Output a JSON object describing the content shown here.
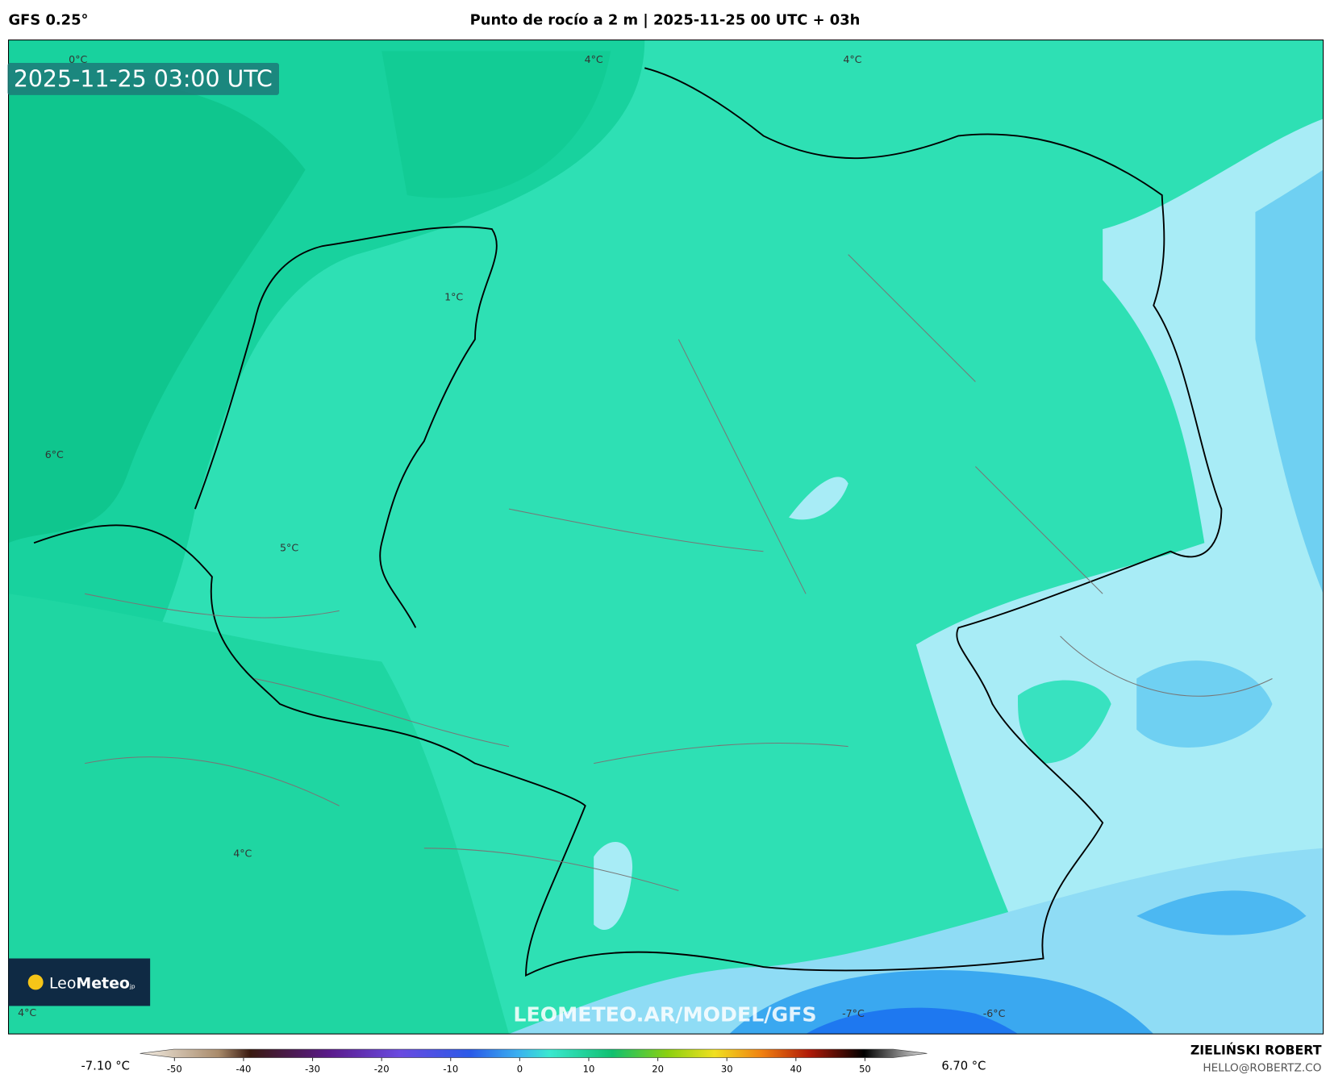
{
  "header": {
    "model": "GFS 0.25°",
    "title": "Punto de rocío a 2 m | 2025-11-25 00 UTC + 03h"
  },
  "map": {
    "timestamp": "2025-11-25 03:00 UTC",
    "contour_labels": [
      "0°C",
      "4°C",
      "4°C",
      "1°C",
      "6°C",
      "5°C",
      "4°C",
      "4°C",
      "-7°C",
      "-6°C"
    ],
    "watermark": "LEOMETEO.AR/MODEL/GFS",
    "logo": {
      "light": "Leo",
      "bold": "Meteo",
      "suffix": "jp"
    }
  },
  "colorbar": {
    "min_label": "-7.10 °C",
    "max_label": "6.70 °C",
    "range": [
      -55,
      59
    ],
    "ticks": [
      -50,
      -40,
      -30,
      -20,
      -10,
      0,
      10,
      20,
      30,
      40,
      50
    ]
  },
  "footer": {
    "author": "ZIELIŃSKI ROBERT",
    "contact": "HELLO@ROBERTZ.CO"
  }
}
